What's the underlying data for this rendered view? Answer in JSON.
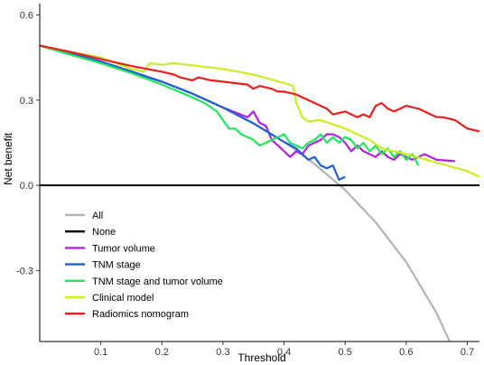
{
  "chart_data": {
    "type": "line",
    "title": "",
    "xlabel": "Threshold",
    "ylabel": "Net benefit",
    "xlim": [
      0.0,
      0.72
    ],
    "ylim": [
      -0.55,
      0.64
    ],
    "xticks": [
      0.1,
      0.2,
      0.3,
      0.4,
      0.5,
      0.6,
      0.7
    ],
    "yticks": [
      -0.3,
      0.0,
      0.3,
      0.6
    ],
    "ytick_labels": [
      "-0.3",
      "0.0",
      "0.3",
      "0.6"
    ],
    "grid": false,
    "legend_position": "bottom-left",
    "series": [
      {
        "name": "All",
        "color": "#b3b3b3",
        "x": [
          0.0,
          0.05,
          0.1,
          0.15,
          0.2,
          0.25,
          0.3,
          0.35,
          0.4,
          0.45,
          0.5,
          0.55,
          0.6,
          0.65,
          0.68
        ],
        "y": [
          0.492,
          0.465,
          0.436,
          0.402,
          0.365,
          0.323,
          0.274,
          0.218,
          0.153,
          0.075,
          -0.016,
          -0.13,
          -0.27,
          -0.451,
          -0.59
        ]
      },
      {
        "name": "None",
        "color": "#000000",
        "x": [
          0.0,
          0.72
        ],
        "y": [
          0.0,
          0.0
        ]
      },
      {
        "name": "Tumor volume",
        "color": "#b41ee6",
        "x": [
          0.0,
          0.1,
          0.2,
          0.25,
          0.3,
          0.34,
          0.35,
          0.36,
          0.37,
          0.38,
          0.39,
          0.4,
          0.41,
          0.42,
          0.43,
          0.44,
          0.45,
          0.46,
          0.47,
          0.48,
          0.49,
          0.5,
          0.51,
          0.52,
          0.53,
          0.54,
          0.55,
          0.56,
          0.57,
          0.58,
          0.59,
          0.6,
          0.61,
          0.62,
          0.63,
          0.64,
          0.65,
          0.68
        ],
        "y": [
          0.492,
          0.436,
          0.365,
          0.323,
          0.274,
          0.24,
          0.26,
          0.22,
          0.21,
          0.16,
          0.14,
          0.12,
          0.1,
          0.12,
          0.11,
          0.14,
          0.15,
          0.16,
          0.18,
          0.18,
          0.17,
          0.15,
          0.12,
          0.14,
          0.12,
          0.11,
          0.1,
          0.12,
          0.1,
          0.09,
          0.11,
          0.1,
          0.09,
          0.1,
          0.11,
          0.1,
          0.09,
          0.085
        ]
      },
      {
        "name": "TNM stage",
        "color": "#1f5fd6",
        "x": [
          0.0,
          0.1,
          0.2,
          0.25,
          0.3,
          0.35,
          0.4,
          0.42,
          0.43,
          0.44,
          0.45,
          0.46,
          0.47,
          0.48,
          0.49,
          0.5
        ],
        "y": [
          0.492,
          0.436,
          0.365,
          0.323,
          0.274,
          0.218,
          0.153,
          0.13,
          0.11,
          0.09,
          0.1,
          0.07,
          0.06,
          0.07,
          0.02,
          0.03
        ]
      },
      {
        "name": "TNM stage and tumor volume",
        "color": "#1fe85a",
        "x": [
          0.0,
          0.05,
          0.1,
          0.15,
          0.2,
          0.25,
          0.27,
          0.29,
          0.3,
          0.31,
          0.32,
          0.33,
          0.34,
          0.35,
          0.36,
          0.37,
          0.38,
          0.39,
          0.4,
          0.41,
          0.42,
          0.43,
          0.44,
          0.45,
          0.46,
          0.47,
          0.48,
          0.49,
          0.5,
          0.51,
          0.52,
          0.53,
          0.54,
          0.55,
          0.56,
          0.57,
          0.58,
          0.59,
          0.6,
          0.61,
          0.62
        ],
        "y": [
          0.492,
          0.46,
          0.43,
          0.395,
          0.355,
          0.31,
          0.29,
          0.26,
          0.23,
          0.2,
          0.2,
          0.18,
          0.17,
          0.16,
          0.14,
          0.15,
          0.16,
          0.17,
          0.18,
          0.15,
          0.14,
          0.13,
          0.15,
          0.16,
          0.18,
          0.15,
          0.17,
          0.15,
          0.17,
          0.16,
          0.13,
          0.15,
          0.12,
          0.14,
          0.11,
          0.13,
          0.1,
          0.12,
          0.09,
          0.11,
          0.07
        ]
      },
      {
        "name": "Clinical model",
        "color": "#c6f01e",
        "x": [
          0.0,
          0.05,
          0.1,
          0.15,
          0.17,
          0.18,
          0.2,
          0.22,
          0.3,
          0.35,
          0.4,
          0.415,
          0.42,
          0.43,
          0.44,
          0.46,
          0.5,
          0.54,
          0.56,
          0.6,
          0.65,
          0.7,
          0.72
        ],
        "y": [
          0.492,
          0.47,
          0.45,
          0.41,
          0.4,
          0.43,
          0.425,
          0.43,
          0.41,
          0.39,
          0.36,
          0.35,
          0.29,
          0.24,
          0.225,
          0.23,
          0.2,
          0.16,
          0.13,
          0.11,
          0.08,
          0.05,
          0.03
        ]
      },
      {
        "name": "Radiomics nomogram",
        "color": "#e6201e",
        "x": [
          0.0,
          0.05,
          0.1,
          0.15,
          0.2,
          0.22,
          0.23,
          0.25,
          0.26,
          0.28,
          0.3,
          0.32,
          0.34,
          0.35,
          0.36,
          0.38,
          0.39,
          0.4,
          0.42,
          0.43,
          0.44,
          0.45,
          0.46,
          0.47,
          0.48,
          0.5,
          0.52,
          0.53,
          0.54,
          0.55,
          0.56,
          0.57,
          0.58,
          0.59,
          0.6,
          0.62,
          0.64,
          0.65,
          0.66,
          0.68,
          0.7,
          0.72
        ],
        "y": [
          0.492,
          0.47,
          0.445,
          0.42,
          0.4,
          0.39,
          0.38,
          0.37,
          0.38,
          0.37,
          0.365,
          0.36,
          0.355,
          0.34,
          0.35,
          0.34,
          0.33,
          0.33,
          0.32,
          0.31,
          0.3,
          0.29,
          0.28,
          0.27,
          0.25,
          0.26,
          0.24,
          0.25,
          0.24,
          0.28,
          0.29,
          0.27,
          0.26,
          0.27,
          0.28,
          0.27,
          0.25,
          0.24,
          0.24,
          0.23,
          0.2,
          0.19
        ]
      }
    ]
  }
}
